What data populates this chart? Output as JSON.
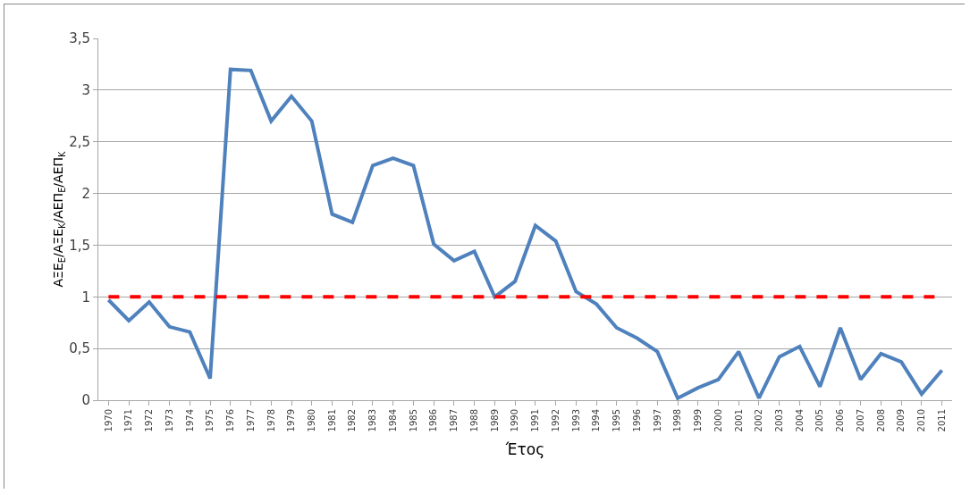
{
  "chart_data": {
    "type": "line",
    "xlabel": "Έτος",
    "ylabel": "ΑΞΕ$_{Ε}$/ΑΞΕ$_{Κ}$/ΑΕΠ$_{Ε}$/ΑΕΠ$_{Κ}$",
    "categories": [
      "1970",
      "1971",
      "1972",
      "1973",
      "1974",
      "1975",
      "1976",
      "1977",
      "1978",
      "1979",
      "1980",
      "1981",
      "1982",
      "1983",
      "1984",
      "1985",
      "1986",
      "1987",
      "1988",
      "1989",
      "1990",
      "1991",
      "1992",
      "1993",
      "1994",
      "1995",
      "1996",
      "1997",
      "1998",
      "1999",
      "2000",
      "2001",
      "2002",
      "2003",
      "2004",
      "2005",
      "2006",
      "2007",
      "2008",
      "2009",
      "2010",
      "2011"
    ],
    "series": [
      {
        "color": "#4f81bd",
        "values": [
          0.97,
          0.77,
          0.95,
          0.71,
          0.66,
          0.21,
          3.2,
          3.19,
          2.7,
          2.94,
          2.7,
          1.8,
          1.72,
          2.27,
          2.34,
          2.27,
          1.51,
          1.35,
          1.44,
          1.0,
          1.15,
          1.69,
          1.54,
          1.05,
          0.93,
          0.7,
          0.6,
          0.47,
          0.02,
          0.12,
          0.2,
          0.47,
          0.02,
          0.42,
          0.52,
          0.13,
          0.7,
          0.2,
          0.45,
          0.37,
          0.06,
          0.29
        ]
      }
    ],
    "ylim": [
      0,
      3.5
    ],
    "yticks": [
      0,
      {
        "value": 0.5,
        "label": "0,5"
      },
      1,
      {
        "value": 1.5,
        "label": "1,5"
      },
      2,
      {
        "value": 2.5,
        "label": "2,5"
      },
      3,
      {
        "value": 3.5,
        "label": "3,5"
      }
    ],
    "ref_lines": [
      {
        "axis": "y",
        "value": 1,
        "color": "#ff0000",
        "line_style": "dashed"
      }
    ],
    "grid": "y",
    "marker": "none",
    "line_style": "solid"
  }
}
